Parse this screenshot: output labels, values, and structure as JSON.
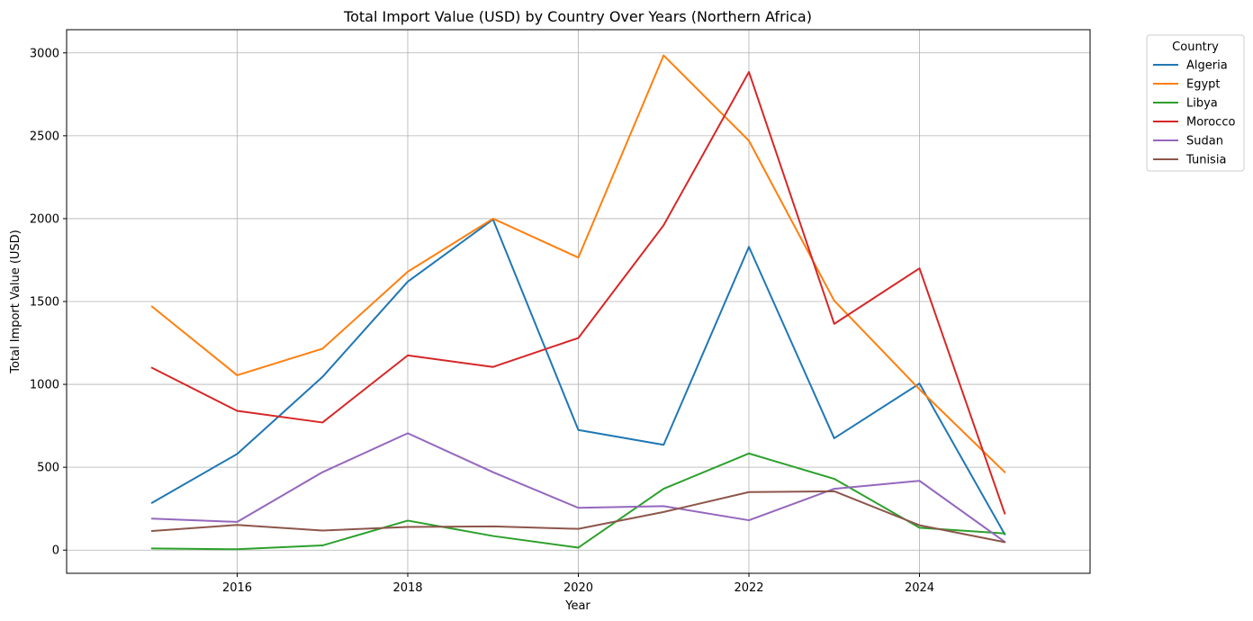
{
  "chart_data": {
    "type": "line",
    "title": "Total Import Value (USD) by Country Over Years (Northern Africa)",
    "xlabel": "Year",
    "ylabel": "Total Import Value (USD)",
    "x": [
      2015,
      2016,
      2017,
      2018,
      2019,
      2020,
      2021,
      2022,
      2023,
      2024,
      2025
    ],
    "xlim": [
      2014,
      2026
    ],
    "ylim": [
      -140,
      3140
    ],
    "xticks": [
      "2016",
      "2018",
      "2020",
      "2022",
      "2024"
    ],
    "yticks": [
      "0",
      "500",
      "1000",
      "1500",
      "2000",
      "2500",
      "3000"
    ],
    "grid": true,
    "legend_title": "Country",
    "legend_position": "outside-top-right",
    "series": [
      {
        "name": "Algeria",
        "color": "#1f77b4",
        "values": [
          285,
          580,
          1045,
          1620,
          1995,
          725,
          635,
          1830,
          675,
          1005,
          95
        ]
      },
      {
        "name": "Egypt",
        "color": "#ff7f0e",
        "values": [
          1470,
          1055,
          1215,
          1680,
          2000,
          1765,
          2985,
          2470,
          1505,
          970,
          470
        ]
      },
      {
        "name": "Libya",
        "color": "#2ca02c",
        "values": [
          10,
          5,
          28,
          178,
          85,
          15,
          370,
          583,
          430,
          135,
          100
        ]
      },
      {
        "name": "Morocco",
        "color": "#d62728",
        "values": [
          1100,
          840,
          770,
          1175,
          1105,
          1280,
          1960,
          2885,
          1365,
          1700,
          220
        ]
      },
      {
        "name": "Sudan",
        "color": "#9467bd",
        "values": [
          190,
          170,
          470,
          705,
          470,
          255,
          265,
          180,
          370,
          418,
          50
        ]
      },
      {
        "name": "Tunisia",
        "color": "#8c564b",
        "values": [
          115,
          152,
          118,
          140,
          143,
          128,
          230,
          350,
          355,
          150,
          48
        ]
      }
    ]
  }
}
